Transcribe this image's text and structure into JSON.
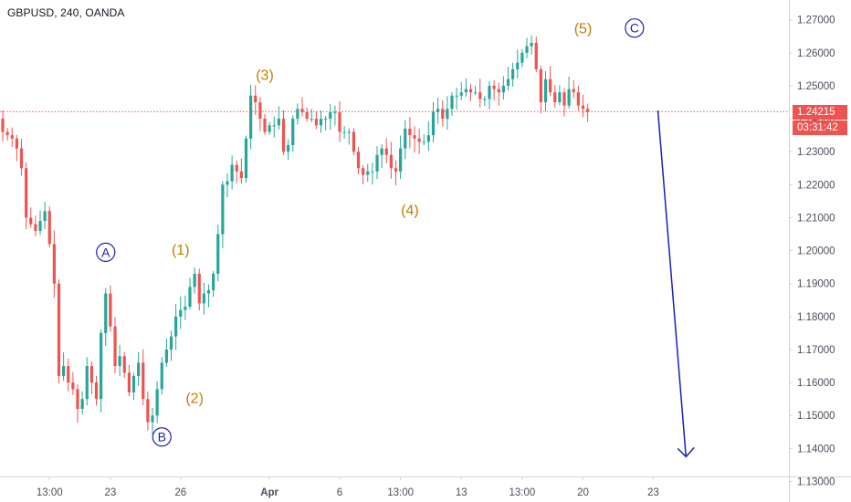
{
  "title": "GBPUSD, 240, OANDA",
  "last_price_label": "1.24215",
  "countdown_label": "03:31:42",
  "colors": {
    "up": "#26a69a",
    "down": "#ef5350",
    "wave_label": "#c27c00",
    "abc_label": "#1c1fb8",
    "arrow": "#1c1fb8",
    "price_line": "#ef5350",
    "axis_text": "#4a4e5a",
    "grid_border": "#d1d4dc"
  },
  "chart_data": {
    "type": "candlestick",
    "title": "GBPUSD, 240, OANDA",
    "ylim": [
      1.13,
      1.276
    ],
    "y_ticks": [
      "1.27000",
      "1.26000",
      "1.25000",
      "1.24000",
      "1.23000",
      "1.22000",
      "1.21000",
      "1.20000",
      "1.19000",
      "1.18000",
      "1.17000",
      "1.16000",
      "1.15000",
      "1.14000",
      "1.13000"
    ],
    "y_tick_values": [
      1.27,
      1.26,
      1.25,
      1.24,
      1.23,
      1.22,
      1.21,
      1.2,
      1.19,
      1.18,
      1.17,
      1.16,
      1.15,
      1.14,
      1.13
    ],
    "x_ticks": [
      "13:00",
      "23",
      "26",
      "Apr",
      "6",
      "13:00",
      "13",
      "13:00",
      "20",
      "23"
    ],
    "x_tick_bold": [
      false,
      false,
      false,
      true,
      false,
      false,
      false,
      false,
      false,
      false
    ],
    "x_tick_bar_index": [
      10,
      23,
      38,
      57,
      72,
      85,
      98,
      111,
      124,
      139
    ],
    "last_price": 1.24215,
    "closes": [
      1.236,
      1.235,
      1.234,
      1.231,
      1.225,
      1.21,
      1.208,
      1.206,
      1.209,
      1.212,
      1.202,
      1.19,
      1.162,
      1.165,
      1.16,
      1.158,
      1.152,
      1.155,
      1.165,
      1.16,
      1.155,
      1.175,
      1.187,
      1.177,
      1.165,
      1.168,
      1.163,
      1.157,
      1.162,
      1.166,
      1.155,
      1.148,
      1.15,
      1.158,
      1.166,
      1.17,
      1.174,
      1.18,
      1.182,
      1.183,
      1.189,
      1.193,
      1.184,
      1.187,
      1.188,
      1.193,
      1.205,
      1.22,
      1.221,
      1.226,
      1.224,
      1.222,
      1.234,
      1.247,
      1.245,
      1.24,
      1.236,
      1.238,
      1.238,
      1.24,
      1.23,
      1.232,
      1.24,
      1.243,
      1.242,
      1.24,
      1.24,
      1.238,
      1.24,
      1.24,
      1.242,
      1.242,
      1.236,
      1.236,
      1.236,
      1.23,
      1.225,
      1.223,
      1.224,
      1.224,
      1.229,
      1.231,
      1.229,
      1.225,
      1.224,
      1.231,
      1.237,
      1.235,
      1.234,
      1.233,
      1.233,
      1.235,
      1.242,
      1.243,
      1.24,
      1.243,
      1.247,
      1.247,
      1.248,
      1.249,
      1.248,
      1.248,
      1.246,
      1.246,
      1.25,
      1.249,
      1.248,
      1.25,
      1.252,
      1.255,
      1.257,
      1.26,
      1.262,
      1.263,
      1.255,
      1.245,
      1.252,
      1.248,
      1.245,
      1.248,
      1.244,
      1.249,
      1.248,
      1.244,
      1.243,
      1.242
    ],
    "annotations": [
      {
        "text": "A",
        "style": "circle",
        "x_bar": 22,
        "y": 1.1995
      },
      {
        "text": "B",
        "style": "circle",
        "x_bar": 34,
        "y": 1.1435
      },
      {
        "text": "C",
        "style": "circle",
        "x_bar": 135,
        "y": 1.2675
      },
      {
        "text": "(1)",
        "style": "wave",
        "x_bar": 38,
        "y": 1.2005
      },
      {
        "text": "(2)",
        "style": "wave",
        "x_bar": 41,
        "y": 1.1555
      },
      {
        "text": "(3)",
        "style": "wave",
        "x_bar": 56,
        "y": 1.2535
      },
      {
        "text": "(4)",
        "style": "wave",
        "x_bar": 87,
        "y": 1.2125
      },
      {
        "text": "(5)",
        "style": "wave",
        "x_bar": 124,
        "y": 1.2675
      }
    ],
    "forecast_arrow": {
      "from_bar": 140,
      "from_y": 1.2425,
      "to_bar": 146,
      "to_y": 1.1375
    }
  }
}
